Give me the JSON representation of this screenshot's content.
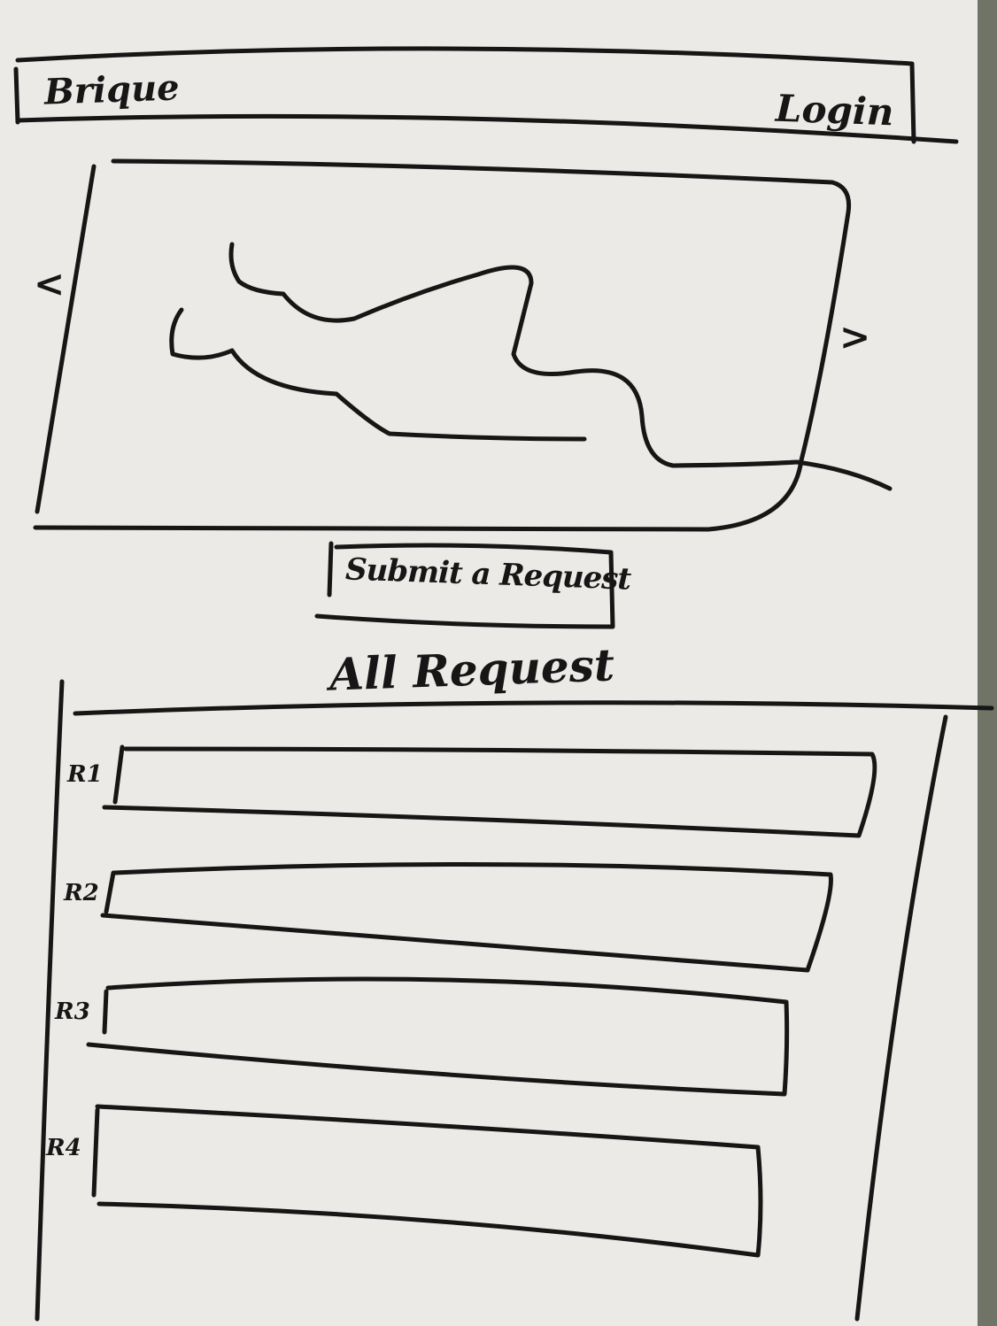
{
  "header": {
    "brand": "Brique",
    "login_label": "Login"
  },
  "carousel": {
    "prev_icon": "chevron-left-icon",
    "next_icon": "chevron-right-icon",
    "prev_glyph": "<",
    "next_glyph": ">",
    "image_icon": "landscape-image-icon"
  },
  "actions": {
    "submit_label": "Submit a Request"
  },
  "requests": {
    "title": "All Request",
    "items": [
      {
        "label": "R1"
      },
      {
        "label": "R2"
      },
      {
        "label": "R3"
      },
      {
        "label": "R4"
      }
    ]
  }
}
